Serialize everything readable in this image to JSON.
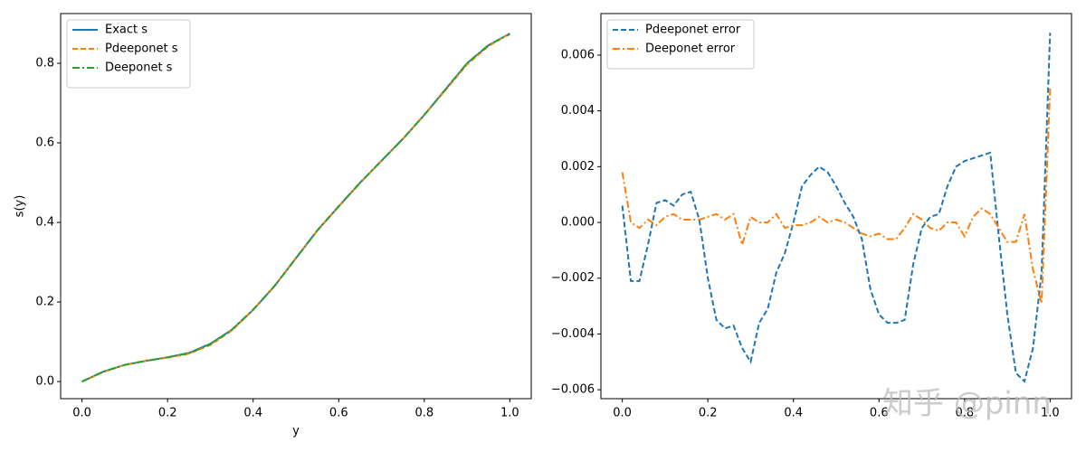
{
  "chart_data": [
    {
      "type": "line",
      "xlabel": "y",
      "ylabel": "s(y)",
      "x": [
        0,
        0.05,
        0.1,
        0.15,
        0.2,
        0.25,
        0.3,
        0.35,
        0.4,
        0.45,
        0.5,
        0.55,
        0.6,
        0.65,
        0.7,
        0.75,
        0.8,
        0.85,
        0.9,
        0.95,
        1
      ],
      "series": [
        {
          "name": "Exact s",
          "color": "#1f77b4",
          "linestyle": "solid",
          "values": [
            0,
            0.025,
            0.042,
            0.052,
            0.061,
            0.072,
            0.095,
            0.13,
            0.18,
            0.24,
            0.31,
            0.38,
            0.44,
            0.5,
            0.555,
            0.61,
            0.67,
            0.735,
            0.8,
            0.845,
            0.875
          ]
        },
        {
          "name": "Pdeeponet s",
          "color": "#ff7f0e",
          "linestyle": "dashed",
          "values": [
            0,
            0.024,
            0.042,
            0.053,
            0.06,
            0.07,
            0.092,
            0.128,
            0.18,
            0.241,
            0.311,
            0.379,
            0.44,
            0.499,
            0.555,
            0.61,
            0.671,
            0.733,
            0.797,
            0.843,
            0.875
          ]
        },
        {
          "name": "Deeponet s",
          "color": "#2ca02c",
          "linestyle": "dashdot",
          "values": [
            0,
            0.025,
            0.042,
            0.052,
            0.061,
            0.071,
            0.094,
            0.13,
            0.181,
            0.24,
            0.31,
            0.38,
            0.441,
            0.5,
            0.555,
            0.61,
            0.67,
            0.735,
            0.8,
            0.846,
            0.873
          ]
        }
      ],
      "xlim": [
        -0.05,
        1.05
      ],
      "ylim": [
        -0.043,
        0.925
      ],
      "xticks": [
        {
          "value": 0,
          "label": "0.0"
        },
        0.2,
        0.4,
        0.6,
        0.8,
        {
          "value": 1,
          "label": "1.0"
        }
      ],
      "yticks": [
        {
          "value": 0,
          "label": "0.0"
        },
        0.2,
        0.4,
        0.6,
        0.8
      ],
      "legend": "upper left",
      "grid": false
    },
    {
      "type": "line",
      "x": [
        0,
        0.02,
        0.04,
        0.06,
        0.08,
        0.1,
        0.12,
        0.14,
        0.16,
        0.18,
        0.2,
        0.22,
        0.24,
        0.26,
        0.28,
        0.3,
        0.32,
        0.34,
        0.36,
        0.38,
        0.4,
        0.42,
        0.44,
        0.46,
        0.48,
        0.5,
        0.52,
        0.54,
        0.56,
        0.58,
        0.6,
        0.62,
        0.64,
        0.66,
        0.68,
        0.7,
        0.72,
        0.74,
        0.76,
        0.78,
        0.8,
        0.82,
        0.84,
        0.86,
        0.88,
        0.9,
        0.92,
        0.94,
        0.96,
        0.98,
        1
      ],
      "series": [
        {
          "name": "Pdeeponet error",
          "color": "#1f77b4",
          "linestyle": "dashed",
          "values": [
            0.0006,
            -0.0021,
            -0.0021,
            -0.0008,
            0.0007,
            0.0008,
            0.0006,
            0.001,
            0.0011,
            0.0001,
            -0.002,
            -0.0035,
            -0.0038,
            -0.0037,
            -0.0045,
            -0.005,
            -0.0036,
            -0.0031,
            -0.0018,
            -0.0011,
            0.0,
            0.0013,
            0.0017,
            0.002,
            0.0018,
            0.0013,
            0.0007,
            0.0002,
            -0.0006,
            -0.0024,
            -0.0033,
            -0.0036,
            -0.0036,
            -0.0035,
            -0.0015,
            -0.0002,
            0.0002,
            0.0003,
            0.0013,
            0.002,
            0.0022,
            0.0023,
            0.0024,
            0.0025,
            -0.0005,
            -0.0033,
            -0.0054,
            -0.0057,
            -0.0045,
            -0.0018,
            0.0068
          ]
        },
        {
          "name": "Deeponet error",
          "color": "#ff7f0e",
          "linestyle": "dashdot",
          "values": [
            0.0018,
            0.0,
            -0.0002,
            0.0001,
            -0.0001,
            0.0002,
            0.0003,
            0.0001,
            0.0001,
            0.0001,
            0.0002,
            0.0003,
            0.0001,
            0.0003,
            -0.0008,
            0.0002,
            0.0,
            0.0,
            0.0003,
            -0.0002,
            -0.0001,
            -0.0001,
            0.0,
            0.0002,
            0.0,
            0.0001,
            0.0,
            -0.0002,
            -0.0004,
            -0.0005,
            -0.0004,
            -0.0006,
            -0.0006,
            -0.0002,
            0.0003,
            0.0001,
            -0.0002,
            -0.0003,
            0.0,
            0.0,
            -0.0005,
            0.0002,
            0.0005,
            0.0003,
            -0.0002,
            -0.0007,
            -0.0007,
            0.0003,
            -0.0017,
            -0.0029,
            0.0048
          ]
        }
      ],
      "xlim": [
        -0.05,
        1.05
      ],
      "ylim": [
        -0.00632,
        0.00749
      ],
      "xticks": [
        {
          "value": 0,
          "label": "0.0"
        },
        0.2,
        0.4,
        0.6,
        0.8,
        {
          "value": 1,
          "label": "1.0"
        }
      ],
      "yticks": [
        {
          "value": -0.006,
          "label": "−0.006"
        },
        {
          "value": -0.004,
          "label": "−0.004"
        },
        {
          "value": -0.002,
          "label": "−0.002"
        },
        {
          "value": 0,
          "label": "0.000"
        },
        0.002,
        0.004,
        0.006
      ],
      "legend": "upper left",
      "grid": false
    }
  ],
  "watermark": "知乎 @pinn"
}
